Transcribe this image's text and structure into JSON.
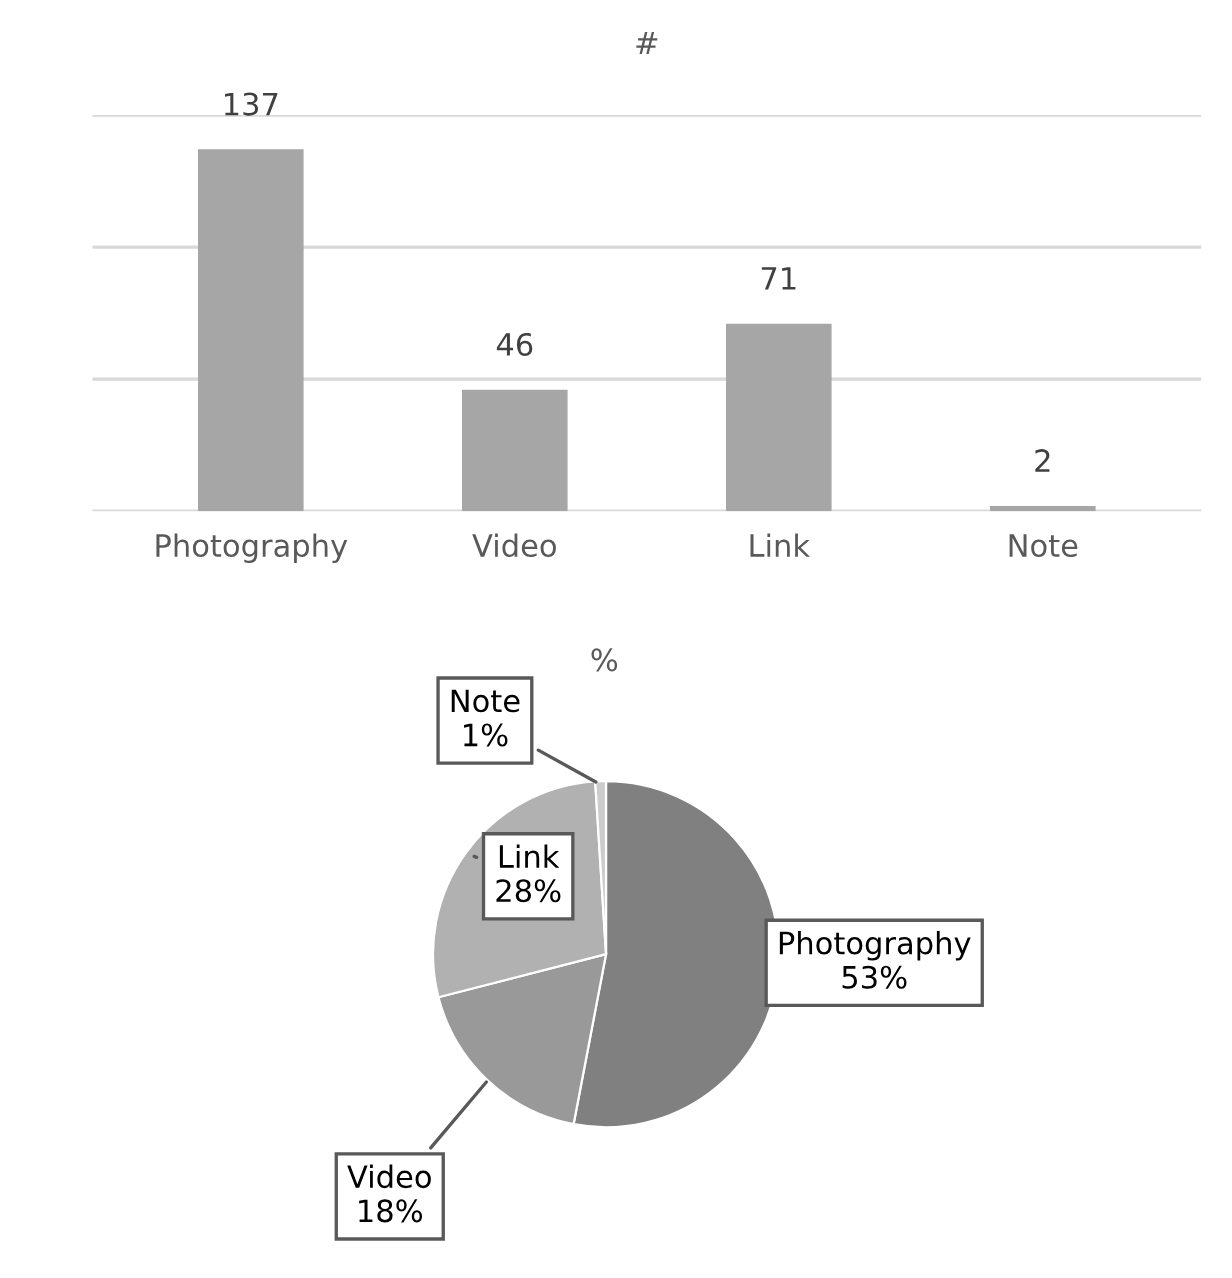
{
  "chart_data": [
    {
      "type": "bar",
      "title": "#",
      "categories": [
        "Photography",
        "Video",
        "Link",
        "Note"
      ],
      "values": [
        137,
        46,
        71,
        2
      ],
      "color": "#a6a6a6",
      "ylim": [
        0,
        150
      ],
      "yticks": [
        0,
        50,
        100,
        150
      ],
      "tick_labels": "x",
      "grid": "y",
      "data_labels": true
    },
    {
      "type": "pie",
      "title": "%",
      "categories": [
        "Photography",
        "Video",
        "Link",
        "Note"
      ],
      "values": [
        53,
        18,
        28,
        1
      ],
      "colors": [
        "#808080",
        "#999999",
        "#b1b1b1",
        "#cccccc"
      ],
      "value_labels": [
        "53%",
        "18%",
        "28%",
        "1%"
      ]
    }
  ]
}
